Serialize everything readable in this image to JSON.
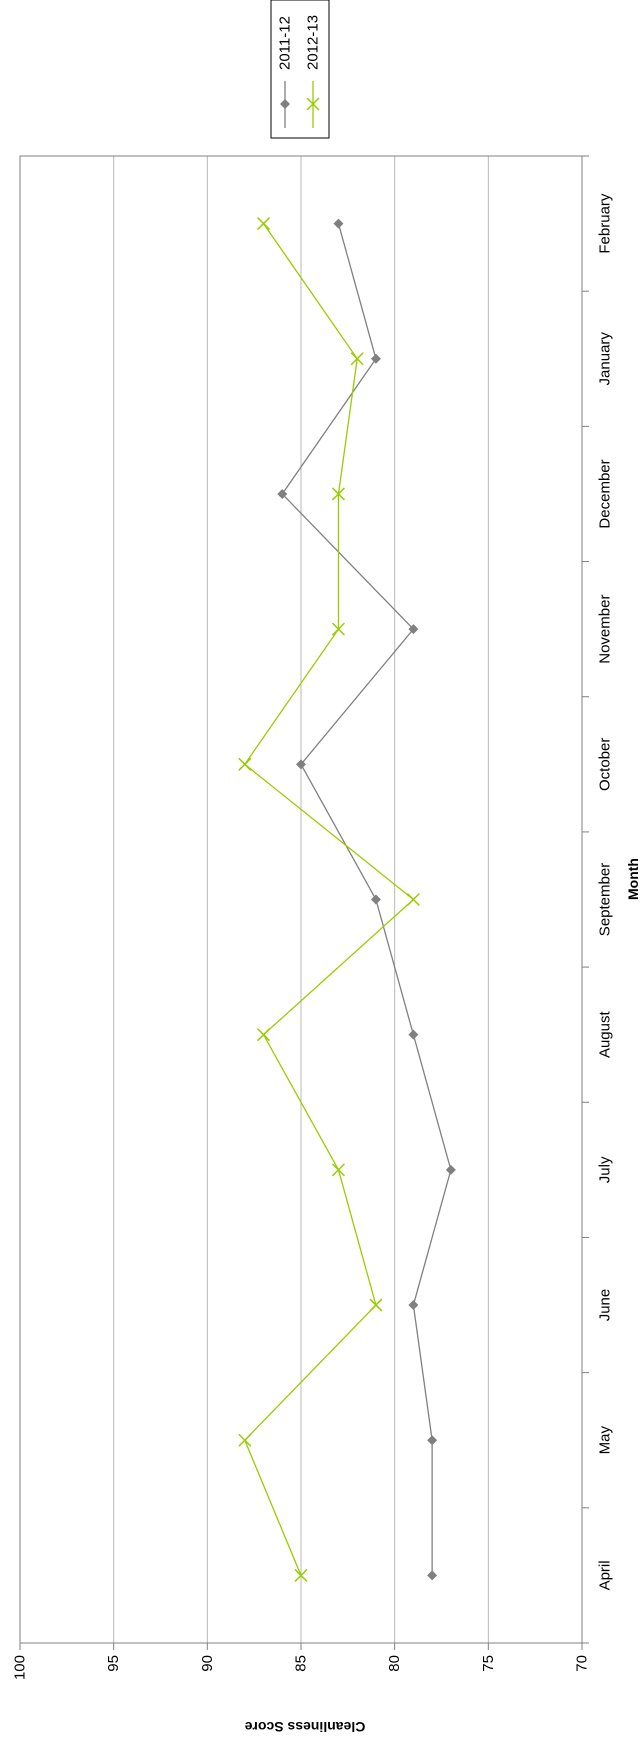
{
  "chart_data": {
    "type": "line",
    "orientation": "rotated-90-clockwise",
    "title": "",
    "xlabel": "Month",
    "ylabel": "Cleanliness Score",
    "categories": [
      "April",
      "May",
      "June",
      "July",
      "August",
      "September",
      "October",
      "November",
      "December",
      "January",
      "February"
    ],
    "ylim": [
      70,
      100
    ],
    "yticks": [
      70,
      75,
      80,
      85,
      90,
      95,
      100
    ],
    "grid": true,
    "legend_position": "top-right",
    "series": [
      {
        "name": "2011-12",
        "color": "#808080",
        "marker": "diamond",
        "values": [
          78,
          78,
          79,
          77,
          79,
          81,
          85,
          79,
          86,
          81,
          83
        ]
      },
      {
        "name": "2012-13",
        "color": "#99cc00",
        "marker": "x",
        "values": [
          85,
          88,
          81,
          83,
          87,
          79,
          88,
          83,
          83,
          82,
          87
        ]
      }
    ]
  }
}
